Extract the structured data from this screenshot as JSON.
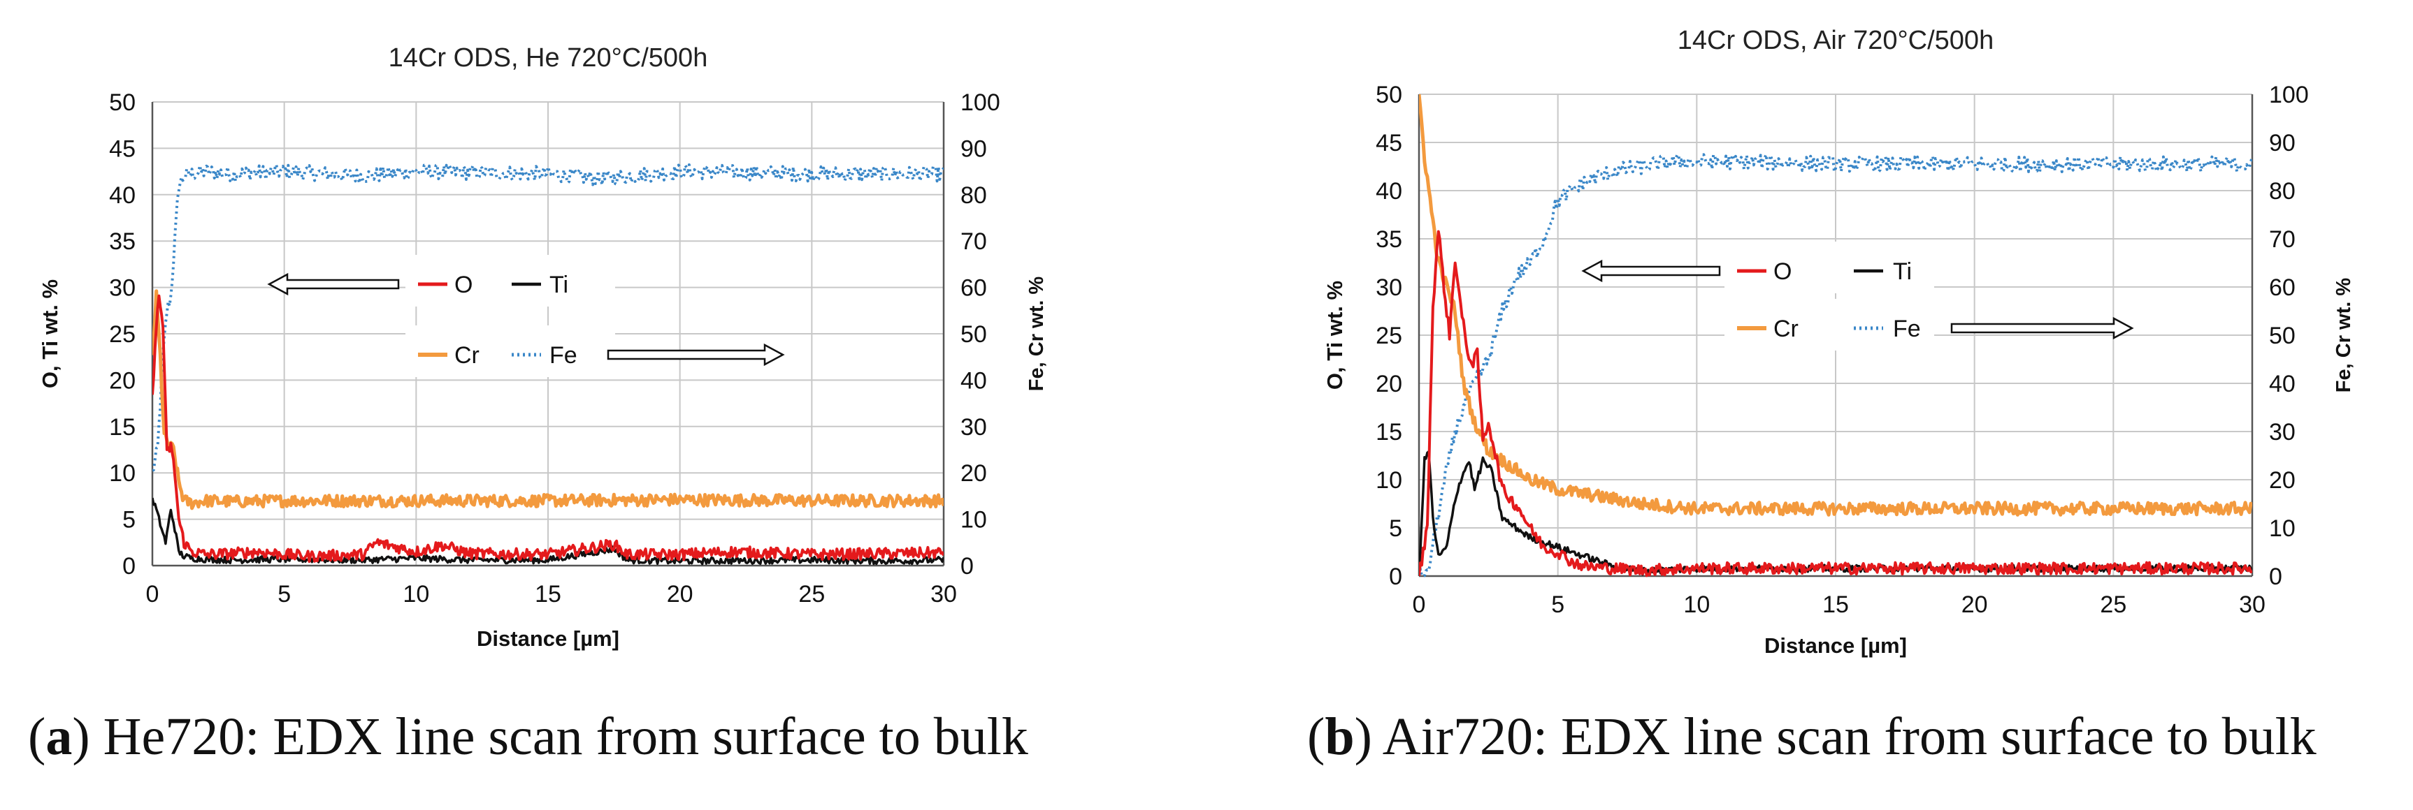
{
  "figure": {
    "panels": [
      {
        "label": "a",
        "caption": "He720: EDX line scan from surface to bulk"
      },
      {
        "label": "b",
        "caption": "Air720: EDX line scan from surface to bulk"
      }
    ]
  },
  "colors": {
    "O": "#e41a1c",
    "Ti": "#111111",
    "Cr": "#f39a3e",
    "Fe": "#3a87c8",
    "grid": "#c8c8c8"
  },
  "chart_data": [
    {
      "type": "line",
      "title": "14Cr ODS, He 720°C/500h",
      "xlabel": "Distance [µm]",
      "ylabel": "O, Ti wt. %",
      "y2label": "Fe, Cr wt. %",
      "xlim": [
        0,
        30
      ],
      "ylim": [
        0,
        50
      ],
      "y2lim": [
        0,
        100
      ],
      "xticks": [
        0,
        5,
        10,
        15,
        20,
        25,
        30
      ],
      "yticks": [
        0,
        5,
        10,
        15,
        20,
        25,
        30,
        35,
        40,
        45,
        50
      ],
      "y2ticks": [
        0,
        10,
        20,
        30,
        40,
        50,
        60,
        70,
        80,
        90,
        100
      ],
      "legend": [
        {
          "name": "O",
          "arrow": "left"
        },
        {
          "name": "Ti",
          "arrow": "none"
        },
        {
          "name": "Cr",
          "arrow": "none"
        },
        {
          "name": "Fe",
          "arrow": "right"
        }
      ],
      "series": [
        {
          "name": "O",
          "axis": "left",
          "x": [
            0,
            0.1,
            0.25,
            0.4,
            0.55,
            0.7,
            0.85,
            1.0,
            1.2,
            1.5,
            2,
            3,
            4,
            5,
            6,
            8,
            8.5,
            10,
            11,
            12,
            15,
            17.5,
            18,
            20,
            22,
            25,
            28,
            30
          ],
          "y": [
            18,
            24,
            29,
            26,
            12,
            13,
            10,
            5,
            2.5,
            1.5,
            1.2,
            1.3,
            1.5,
            1.2,
            1.0,
            1.2,
            2.5,
            1.5,
            2.2,
            1.3,
            1.2,
            2.3,
            1.2,
            1.2,
            1.5,
            1.2,
            1.3,
            1.4
          ]
        },
        {
          "name": "Ti",
          "axis": "left",
          "x": [
            0,
            0.1,
            0.3,
            0.5,
            0.7,
            0.85,
            1.0,
            1.2,
            1.5,
            2,
            3,
            5,
            8,
            10,
            12,
            15,
            17.5,
            18,
            20,
            25,
            28,
            30
          ],
          "y": [
            7,
            6.5,
            4.5,
            2.5,
            6,
            4,
            1.5,
            1.0,
            0.8,
            0.7,
            0.6,
            0.7,
            0.6,
            0.8,
            0.6,
            0.6,
            1.8,
            0.6,
            0.5,
            0.6,
            0.5,
            0.6
          ]
        },
        {
          "name": "Cr",
          "axis": "right",
          "x": [
            0,
            0.15,
            0.3,
            0.45,
            0.6,
            0.8,
            1.0,
            1.2,
            1.5,
            2,
            3,
            5,
            10,
            15,
            20,
            25,
            30
          ],
          "y": [
            45,
            58,
            45,
            28,
            26,
            25,
            18,
            14,
            13.5,
            14,
            13.8,
            14,
            14,
            14,
            14.2,
            14,
            14
          ]
        },
        {
          "name": "Fe",
          "axis": "right",
          "x": [
            0,
            0.2,
            0.4,
            0.55,
            0.7,
            0.85,
            1.0,
            1.2,
            1.5,
            2,
            3,
            5,
            8,
            10,
            15,
            17,
            20,
            25,
            30
          ],
          "y": [
            20,
            25,
            45,
            55,
            58,
            70,
            82,
            84,
            84.5,
            85,
            84.5,
            85,
            84,
            85,
            84.5,
            83.5,
            85,
            84.5,
            84.5
          ]
        }
      ]
    },
    {
      "type": "line",
      "title": "14Cr ODS, Air 720°C/500h",
      "xlabel": "Distance [µm]",
      "ylabel": "O, Ti wt. %",
      "y2label": "Fe, Cr wt. %",
      "xlim": [
        0,
        30
      ],
      "ylim": [
        0,
        50
      ],
      "y2lim": [
        0,
        100
      ],
      "xticks": [
        0,
        5,
        10,
        15,
        20,
        25,
        30
      ],
      "yticks": [
        0,
        5,
        10,
        15,
        20,
        25,
        30,
        35,
        40,
        45,
        50
      ],
      "y2ticks": [
        0,
        10,
        20,
        30,
        40,
        50,
        60,
        70,
        80,
        90,
        100
      ],
      "legend": [
        {
          "name": "O",
          "arrow": "left"
        },
        {
          "name": "Ti",
          "arrow": "none"
        },
        {
          "name": "Cr",
          "arrow": "none"
        },
        {
          "name": "Fe",
          "arrow": "right"
        }
      ],
      "series": [
        {
          "name": "O",
          "axis": "left",
          "x": [
            0,
            0.3,
            0.5,
            0.7,
            0.9,
            1.1,
            1.3,
            1.5,
            1.7,
            1.9,
            2.1,
            2.3,
            2.5,
            2.8,
            3.0,
            3.3,
            3.6,
            4.0,
            4.5,
            5.0,
            5.5,
            6.0,
            7.0,
            8.0,
            10,
            15,
            20,
            25,
            30
          ],
          "y": [
            0,
            5,
            28,
            36,
            30,
            25,
            33,
            28,
            24,
            22,
            23,
            14,
            16,
            12,
            9,
            8,
            7,
            5,
            3,
            2.5,
            1.5,
            1.0,
            0.8,
            0.6,
            0.8,
            0.8,
            0.8,
            0.8,
            0.8
          ]
        },
        {
          "name": "Ti",
          "axis": "left",
          "x": [
            0,
            0.2,
            0.35,
            0.5,
            0.7,
            1.0,
            1.3,
            1.5,
            1.8,
            2.0,
            2.3,
            2.6,
            3.0,
            3.5,
            4.0,
            5.0,
            6.0,
            7.0,
            8.0,
            10,
            15,
            20,
            25,
            30
          ],
          "y": [
            0,
            12,
            13,
            6,
            2,
            3,
            8,
            10,
            12,
            9,
            12,
            11,
            6,
            5,
            4,
            3,
            2,
            1.0,
            0.5,
            0.8,
            0.8,
            0.8,
            0.8,
            0.8
          ]
        },
        {
          "name": "Cr",
          "axis": "right",
          "x": [
            0,
            0.2,
            0.4,
            0.7,
            1.0,
            1.3,
            1.6,
            2.0,
            2.5,
            3.0,
            4.0,
            5.0,
            6.0,
            8.0,
            10,
            15,
            20,
            25,
            30
          ],
          "y": [
            100,
            87,
            78,
            65,
            60,
            55,
            40,
            32,
            26,
            24,
            20,
            18,
            17,
            15,
            14,
            14,
            14,
            14,
            14
          ]
        },
        {
          "name": "Fe",
          "axis": "right",
          "x": [
            0,
            0.3,
            0.6,
            1.0,
            1.3,
            1.6,
            2.0,
            2.5,
            3.0,
            3.5,
            4.0,
            4.5,
            5.0,
            5.5,
            6.0,
            7.0,
            8.0,
            9.0,
            10,
            12,
            15,
            20,
            25,
            30
          ],
          "y": [
            0,
            0,
            10,
            22,
            30,
            35,
            40,
            45,
            55,
            62,
            65,
            70,
            78,
            80,
            82,
            84,
            85,
            86,
            86,
            86,
            85.5,
            85.5,
            85.5,
            85.5
          ]
        }
      ]
    }
  ]
}
